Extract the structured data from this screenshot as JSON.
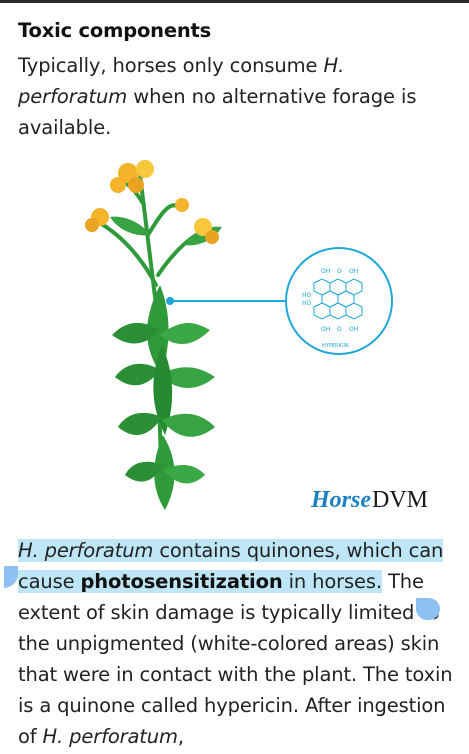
{
  "heading": "Toxic components",
  "para1": {
    "text_a": "Typically, horses only consume ",
    "italic_a": "H. perforatum",
    "text_b": " when no alternative forage is available."
  },
  "figure": {
    "molecule_label": "HYPERICIN",
    "mol_oh_top_left": "OH",
    "mol_o_top": "O",
    "mol_oh_top_right": "OH",
    "mol_ho_1": "HO",
    "mol_ho_2": "HO",
    "mol_oh_bottom_left": "OH",
    "mol_o_bottom": "O",
    "mol_oh_bottom_right": "OH",
    "brand_italic": "Horse",
    "brand_bold": "DVM",
    "colors": {
      "leaf": "#2f9a3a",
      "leaf_dark": "#1f7a2a",
      "flower": "#f3b42c",
      "molecule": "#1fa7d8",
      "brand_blue": "#1a7fc4"
    }
  },
  "para2": {
    "sel_italic": "H. perforatum",
    "sel_text_a": " contains quinones, which can cause ",
    "sel_bold": "photosensitization",
    "sel_text_b": " in horses.",
    "text_c": " The extent of skin damage is typically limited to the unpigmented (white-colored areas) skin that were in contact with the plant. The toxin is a quinone called hypericin. After ingestion of ",
    "italic_c": "H. perforatum",
    "text_d": ","
  }
}
